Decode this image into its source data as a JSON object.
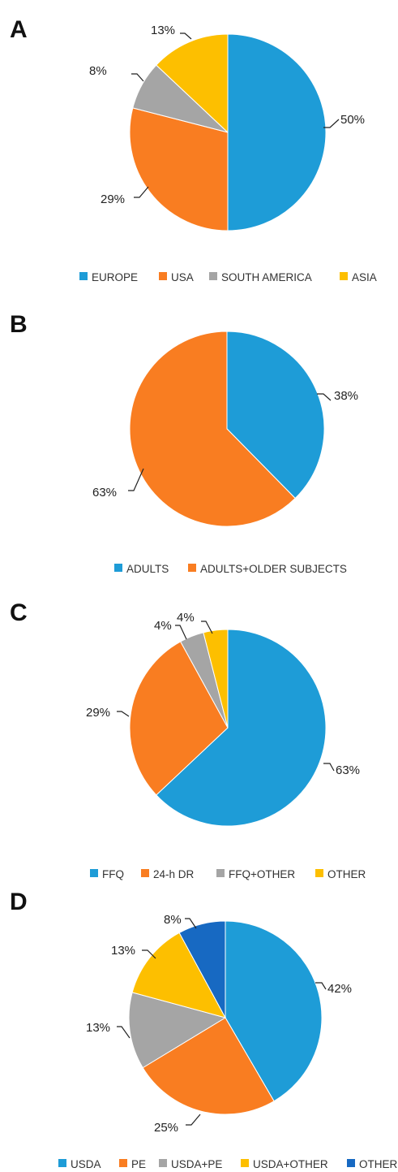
{
  "chart_data": [
    {
      "type": "pie",
      "panel": "A",
      "categories": [
        "EUROPE",
        "USA",
        "SOUTH AMERICA",
        "ASIA"
      ],
      "values": [
        50,
        29,
        8,
        13
      ],
      "labels": [
        "50%",
        "29%",
        "8%",
        "13%"
      ],
      "colors": [
        "#1e9cd7",
        "#f97d21",
        "#a5a5a5",
        "#fdbf00"
      ],
      "legend": "bottom"
    },
    {
      "type": "pie",
      "panel": "B",
      "categories": [
        "ADULTS",
        "ADULTS+OLDER SUBJECTS"
      ],
      "values": [
        38,
        63
      ],
      "labels": [
        "38%",
        "63%"
      ],
      "colors": [
        "#1e9cd7",
        "#f97d21"
      ],
      "legend": "bottom"
    },
    {
      "type": "pie",
      "panel": "C",
      "categories": [
        "FFQ",
        "24-h DR",
        "FFQ+OTHER",
        "OTHER"
      ],
      "values": [
        63,
        29,
        4,
        4
      ],
      "labels": [
        "63%",
        "29%",
        "4%",
        "4%"
      ],
      "colors": [
        "#1e9cd7",
        "#f97d21",
        "#a5a5a5",
        "#fdbf00"
      ],
      "legend": "bottom"
    },
    {
      "type": "pie",
      "panel": "D",
      "categories": [
        "USDA",
        "PE",
        "USDA+PE",
        "USDA+OTHER",
        "OTHER"
      ],
      "values": [
        42,
        25,
        13,
        13,
        8
      ],
      "labels": [
        "42%",
        "25%",
        "13%",
        "13%",
        "8%"
      ],
      "colors": [
        "#1e9cd7",
        "#f97d21",
        "#a5a5a5",
        "#fdbf00",
        "#1769c2"
      ],
      "legend": "bottom"
    }
  ]
}
